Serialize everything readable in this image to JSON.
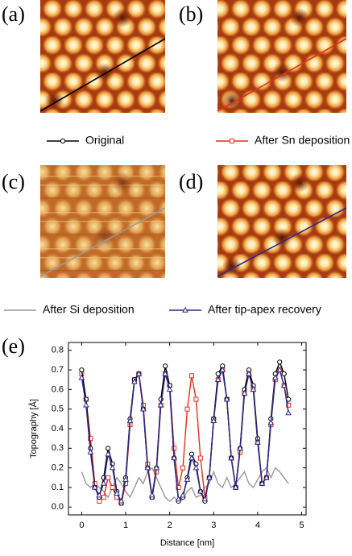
{
  "image_panels": [
    {
      "label": "(a)"
    },
    {
      "label": "(b)"
    },
    {
      "label": "(c)"
    },
    {
      "label": "(d)"
    }
  ],
  "chart_data": {
    "type": "line",
    "panel_label": "(e)",
    "x_label": "Distance [nm]",
    "y_label": "Topography [Å]",
    "xlim": [
      -0.3,
      5.1
    ],
    "ylim": [
      -0.04,
      0.84
    ],
    "xticks": [
      0,
      1,
      2,
      3,
      4,
      5
    ],
    "yticks": [
      {
        "value": 0,
        "label": "0.0"
      },
      0.1,
      0.2,
      0.3,
      0.4,
      0.5,
      0.6,
      0.7,
      0.8
    ],
    "x": [
      0,
      0.1,
      0.2,
      0.3,
      0.4,
      0.5,
      0.6,
      0.7,
      0.8,
      0.9,
      1.0,
      1.1,
      1.2,
      1.3,
      1.4,
      1.5,
      1.6,
      1.7,
      1.8,
      1.9,
      2.0,
      2.1,
      2.2,
      2.3,
      2.4,
      2.5,
      2.6,
      2.7,
      2.8,
      2.9,
      3.0,
      3.1,
      3.2,
      3.3,
      3.4,
      3.5,
      3.6,
      3.7,
      3.8,
      3.9,
      4.0,
      4.1,
      4.2,
      4.3,
      4.4,
      4.5,
      4.6,
      4.7
    ],
    "series": [
      {
        "name": "Original",
        "color": "#000000",
        "marker": "circle",
        "values": [
          0.7,
          0.55,
          0.3,
          0.1,
          0.05,
          0.15,
          0.3,
          0.22,
          0.08,
          0.02,
          0.15,
          0.45,
          0.65,
          0.68,
          0.5,
          0.2,
          0.05,
          0.2,
          0.55,
          0.72,
          0.62,
          0.25,
          0.03,
          0.05,
          0.15,
          0.27,
          0.22,
          0.08,
          0.03,
          0.15,
          0.45,
          0.68,
          0.72,
          0.55,
          0.25,
          0.1,
          0.3,
          0.6,
          0.7,
          0.62,
          0.35,
          0.12,
          0.15,
          0.45,
          0.68,
          0.74,
          0.68,
          0.55
        ]
      },
      {
        "name": "After Sn deposition",
        "color": "#e03020",
        "marker": "square",
        "values": [
          0.68,
          0.55,
          0.35,
          0.12,
          0.03,
          0.05,
          0.15,
          0.1,
          0.05,
          0.02,
          0.12,
          0.42,
          0.65,
          0.68,
          0.52,
          0.22,
          0.05,
          0.18,
          0.52,
          0.68,
          0.62,
          0.3,
          0.1,
          0.2,
          0.5,
          0.67,
          0.55,
          0.25,
          0.05,
          0.15,
          0.45,
          0.65,
          0.7,
          0.55,
          0.25,
          0.1,
          0.28,
          0.58,
          0.68,
          0.6,
          0.33,
          0.12,
          0.15,
          0.42,
          0.65,
          0.7,
          0.62,
          0.52
        ]
      },
      {
        "name": "After Si deposition",
        "color": "#999999",
        "marker": "none",
        "values": [
          0.18,
          0.12,
          0.1,
          0.12,
          0.1,
          0.08,
          0.05,
          0.1,
          0.15,
          0.12,
          0.08,
          0.05,
          0.1,
          0.15,
          0.12,
          0.18,
          0.2,
          0.15,
          0.1,
          0.05,
          0.03,
          0.05,
          0.03,
          0.04,
          0.08,
          0.1,
          0.05,
          0.06,
          0.1,
          0.12,
          0.18,
          0.12,
          0.1,
          0.15,
          0.1,
          0.12,
          0.15,
          0.18,
          0.12,
          0.1,
          0.14,
          0.18,
          0.2,
          0.15,
          0.2,
          0.18,
          0.15,
          0.12
        ]
      },
      {
        "name": "After tip-apex recovery",
        "color": "#2a2a8c",
        "marker": "triangle",
        "values": [
          0.66,
          0.52,
          0.28,
          0.1,
          0.06,
          0.12,
          0.27,
          0.2,
          0.07,
          0.03,
          0.14,
          0.44,
          0.64,
          0.68,
          0.5,
          0.2,
          0.06,
          0.2,
          0.52,
          0.68,
          0.6,
          0.25,
          0.04,
          0.06,
          0.14,
          0.25,
          0.2,
          0.08,
          0.04,
          0.15,
          0.44,
          0.65,
          0.7,
          0.55,
          0.25,
          0.1,
          0.3,
          0.58,
          0.68,
          0.6,
          0.33,
          0.12,
          0.15,
          0.43,
          0.66,
          0.7,
          0.62,
          0.48
        ]
      }
    ]
  }
}
